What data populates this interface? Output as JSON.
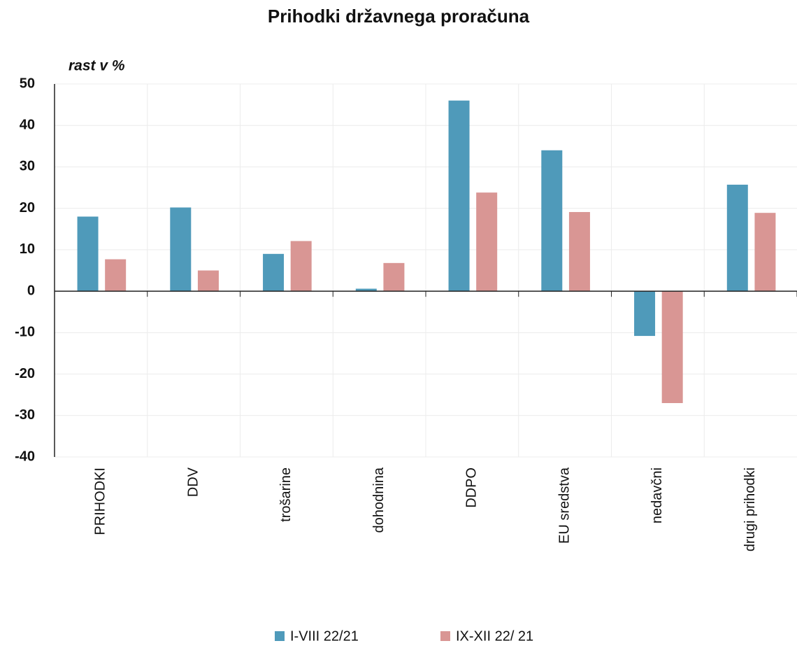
{
  "chart_data": {
    "type": "bar",
    "title": "Prihodki državnega proračuna",
    "y_axis_label": "rast v %",
    "categories": [
      "PRIHODKI",
      "DDV",
      "trošarine",
      "dohodnina",
      "DDPO",
      "EU sredstva",
      "nedavčni",
      "drugi prihodki"
    ],
    "series": [
      {
        "name": "I-VIII 22/21",
        "color": "#4f9aba",
        "values": [
          18,
          20.2,
          9,
          0.6,
          46,
          34,
          -10.8,
          25.7
        ]
      },
      {
        "name": "IX-XII 22/ 21",
        "color": "#d99694",
        "values": [
          7.7,
          5,
          12.1,
          6.8,
          23.8,
          19.1,
          -27,
          18.9
        ]
      }
    ],
    "ylim": [
      -40,
      50
    ],
    "yticks": [
      -40,
      -30,
      -20,
      -10,
      0,
      10,
      20,
      30,
      40,
      50
    ],
    "grid": true,
    "legend": "bottom"
  }
}
